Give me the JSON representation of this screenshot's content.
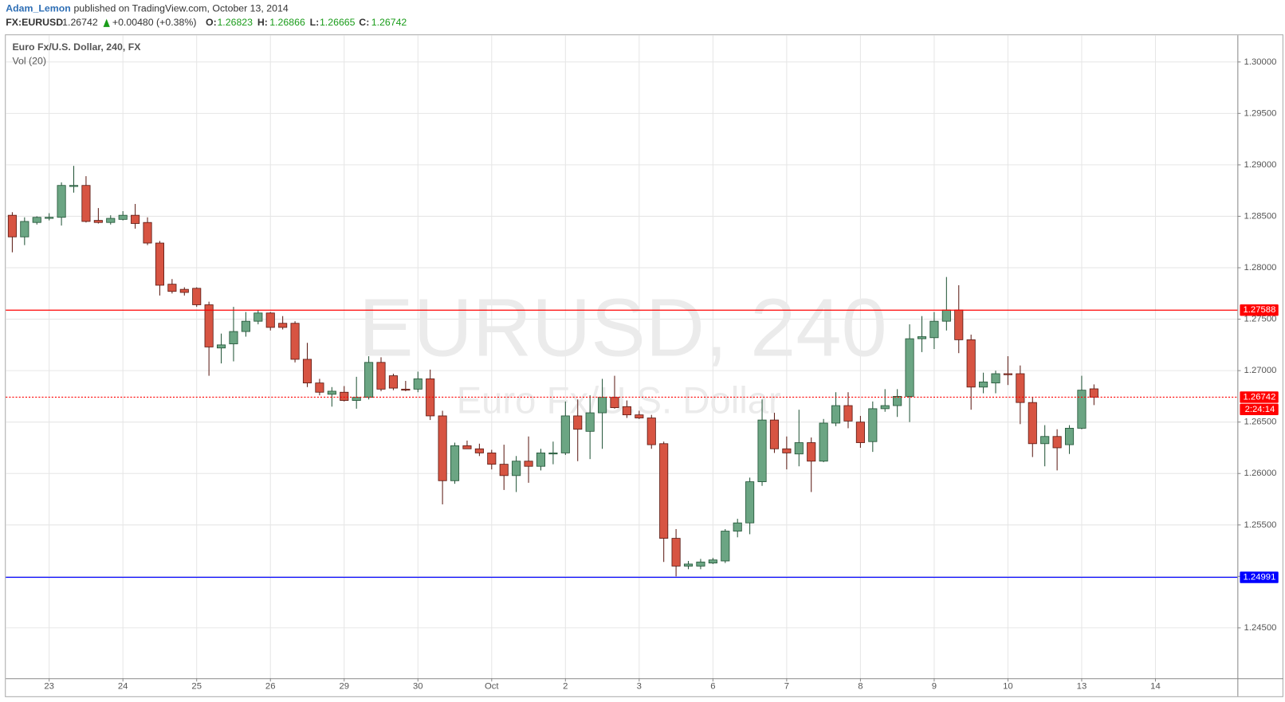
{
  "header": {
    "user": "Adam_Lemon",
    "published": "published on TradingView.com, October 13, 2014",
    "symbol": "FX:EURUSD",
    "last": "1.26742",
    "change": "+0.00480 (+0.38%)",
    "o_label": "O:",
    "o": "1.26823",
    "h_label": "H:",
    "h": "1.26866",
    "l_label": "L:",
    "l": "1.26665",
    "c_label": "C:",
    "c": "1.26742"
  },
  "chart_data": {
    "type": "candlestick",
    "title": "Euro Fx/U.S. Dollar, 240, FX",
    "subtitle": "Vol (20)",
    "watermark": "EURUSD, 240",
    "watermark_sub": "Euro Fx/U.S. Dollar",
    "up_color": "#6ba583",
    "up_edge": "#225437",
    "down_color": "#d75442",
    "down_edge": "#5b1a13",
    "open": [
      1.2851,
      1.283,
      1.2844,
      1.2848,
      1.2849,
      1.2879,
      1.288,
      1.2846,
      1.2844,
      1.2847,
      1.2851,
      1.2844,
      1.2824,
      1.2784,
      1.2779,
      1.278,
      1.2764,
      1.2722,
      1.2726,
      1.2738,
      1.2748,
      1.2756,
      1.2746,
      1.2746,
      1.2711,
      1.2688,
      1.2677,
      1.2679,
      1.2671,
      1.2674,
      1.2708,
      1.2695,
      1.2682,
      1.2682,
      1.2692,
      1.2656,
      1.2593,
      1.2627,
      1.2624,
      1.262,
      1.2609,
      1.2598,
      1.2612,
      1.2607,
      1.2619,
      1.262,
      1.2656,
      1.2641,
      1.2659,
      1.2674,
      1.2665,
      1.2657,
      1.2654,
      1.2629,
      1.2537,
      1.251,
      1.251,
      1.2513,
      1.2515,
      1.2544,
      1.2552,
      1.2592,
      1.2652,
      1.2624,
      1.2619,
      1.263,
      1.2612,
      1.2649,
      1.2666,
      1.265,
      1.2631,
      1.2663,
      1.2666,
      1.2675,
      1.2731,
      1.2732,
      1.2748,
      1.2759,
      1.273,
      1.2684,
      1.2688,
      1.2697,
      1.2697,
      1.2669,
      1.2629,
      1.2636,
      1.2628,
      1.2644,
      1.26823
    ],
    "high": [
      1.2854,
      1.2849,
      1.285,
      1.2853,
      1.2883,
      1.2899,
      1.2889,
      1.2858,
      1.2851,
      1.2855,
      1.2862,
      1.2849,
      1.2826,
      1.2789,
      1.2781,
      1.2781,
      1.2767,
      1.2736,
      1.2762,
      1.2757,
      1.2759,
      1.2757,
      1.2753,
      1.2748,
      1.2727,
      1.2692,
      1.2684,
      1.2685,
      1.2694,
      1.2714,
      1.2713,
      1.2697,
      1.269,
      1.2699,
      1.2701,
      1.2661,
      1.263,
      1.2632,
      1.2629,
      1.2623,
      1.2628,
      1.2617,
      1.2636,
      1.2624,
      1.2631,
      1.267,
      1.2672,
      1.2676,
      1.2692,
      1.2695,
      1.2671,
      1.2661,
      1.2657,
      1.2631,
      1.2546,
      1.2515,
      1.2517,
      1.2518,
      1.2546,
      1.2556,
      1.2596,
      1.2672,
      1.2659,
      1.2636,
      1.2662,
      1.2635,
      1.2653,
      1.2679,
      1.2679,
      1.2656,
      1.267,
      1.2682,
      1.2682,
      1.2745,
      1.2753,
      1.2757,
      1.2791,
      1.2783,
      1.2735,
      1.2698,
      1.27,
      1.2714,
      1.2705,
      1.2674,
      1.2647,
      1.2643,
      1.2647,
      1.2695,
      1.26866
    ],
    "low": [
      1.2815,
      1.2822,
      1.2842,
      1.2846,
      1.2841,
      1.2873,
      1.2844,
      1.2843,
      1.2842,
      1.2846,
      1.2838,
      1.2822,
      1.2773,
      1.2775,
      1.2773,
      1.2762,
      1.2695,
      1.2707,
      1.2709,
      1.2733,
      1.2745,
      1.2739,
      1.274,
      1.2708,
      1.2684,
      1.2676,
      1.2665,
      1.267,
      1.2663,
      1.2672,
      1.268,
      1.2681,
      1.268,
      1.2679,
      1.2652,
      1.257,
      1.259,
      1.2624,
      1.2617,
      1.2604,
      1.2584,
      1.2582,
      1.2591,
      1.2603,
      1.2609,
      1.2618,
      1.2612,
      1.2614,
      1.2624,
      1.2663,
      1.2654,
      1.2653,
      1.2624,
      1.2514,
      1.25,
      1.2507,
      1.2507,
      1.2512,
      1.2513,
      1.2538,
      1.2541,
      1.2588,
      1.262,
      1.2604,
      1.2607,
      1.2582,
      1.2611,
      1.2646,
      1.2644,
      1.2625,
      1.2621,
      1.266,
      1.2655,
      1.265,
      1.2718,
      1.2721,
      1.2739,
      1.2717,
      1.2662,
      1.2678,
      1.2678,
      1.2686,
      1.2648,
      1.2616,
      1.2607,
      1.2603,
      1.2619,
      1.2643,
      1.26665
    ],
    "close": [
      1.283,
      1.2845,
      1.2849,
      1.2849,
      1.288,
      1.288,
      1.2845,
      1.2844,
      1.2848,
      1.2851,
      1.2843,
      1.2824,
      1.2783,
      1.2777,
      1.2776,
      1.2764,
      1.2723,
      1.2725,
      1.2738,
      1.2748,
      1.2756,
      1.2742,
      1.2742,
      1.2711,
      1.2688,
      1.2679,
      1.268,
      1.2671,
      1.2674,
      1.2708,
      1.2682,
      1.2683,
      1.2681,
      1.2692,
      1.2656,
      1.2593,
      1.2627,
      1.2624,
      1.262,
      1.2609,
      1.2598,
      1.2612,
      1.2607,
      1.262,
      1.262,
      1.2656,
      1.2643,
      1.2659,
      1.2674,
      1.2664,
      1.2657,
      1.2654,
      1.2628,
      1.2537,
      1.251,
      1.2512,
      1.2514,
      1.2516,
      1.2544,
      1.2552,
      1.2592,
      1.2652,
      1.2624,
      1.262,
      1.263,
      1.2612,
      1.2649,
      1.2666,
      1.2651,
      1.263,
      1.2663,
      1.2666,
      1.2675,
      1.2731,
      1.2733,
      1.2748,
      1.2759,
      1.273,
      1.2684,
      1.2689,
      1.2697,
      1.2696,
      1.2669,
      1.2629,
      1.2636,
      1.2625,
      1.2644,
      1.2681,
      1.26742
    ],
    "ylim": [
      1.2401,
      1.3026
    ],
    "yticks": [
      {
        "value": 1.245,
        "label": "1.24500"
      },
      {
        "value": 1.25,
        "label": "1.25000"
      },
      {
        "value": 1.255,
        "label": "1.25500"
      },
      {
        "value": 1.26,
        "label": "1.26000"
      },
      {
        "value": 1.265,
        "label": "1.26500"
      },
      {
        "value": 1.27,
        "label": "1.27000"
      },
      {
        "value": 1.275,
        "label": "1.27500"
      },
      {
        "value": 1.28,
        "label": "1.28000"
      },
      {
        "value": 1.285,
        "label": "1.28500"
      },
      {
        "value": 1.29,
        "label": "1.29000"
      },
      {
        "value": 1.295,
        "label": "1.29500"
      },
      {
        "value": 1.3,
        "label": "1.30000"
      }
    ],
    "xlim": [
      -0.53,
      99.67
    ],
    "xticks": [
      {
        "value": 3,
        "label": "23"
      },
      {
        "value": 9,
        "label": "24"
      },
      {
        "value": 15,
        "label": "25"
      },
      {
        "value": 21,
        "label": "26"
      },
      {
        "value": 27,
        "label": "29"
      },
      {
        "value": 33,
        "label": "30"
      },
      {
        "value": 39,
        "label": "Oct"
      },
      {
        "value": 45,
        "label": "2"
      },
      {
        "value": 51,
        "label": "3"
      },
      {
        "value": 57,
        "label": "6"
      },
      {
        "value": 63,
        "label": "7"
      },
      {
        "value": 69,
        "label": "8"
      },
      {
        "value": 75,
        "label": "9"
      },
      {
        "value": 81,
        "label": "10"
      },
      {
        "value": 87,
        "label": "13"
      },
      {
        "value": 93,
        "label": "14"
      }
    ],
    "grid": true,
    "lines": [
      {
        "value": 1.27588,
        "label": "1.27588",
        "color": "#ff0000",
        "style": "solid"
      },
      {
        "value": 1.24991,
        "label": "1.24991",
        "color": "#0000ff",
        "style": "solid"
      },
      {
        "value": 1.26742,
        "label": "1.26742",
        "color": "#ff0000",
        "style": "dotted"
      }
    ],
    "countdown": "2:24:14"
  }
}
